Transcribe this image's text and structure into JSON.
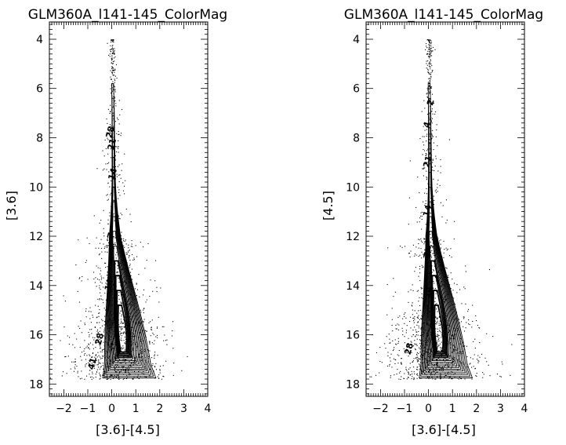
{
  "chart_data": [
    {
      "type": "scatter",
      "title": "GLM360A_l141-145_ColorMag",
      "xlabel": "[3.6]-[4.5]",
      "ylabel": "[3.6]",
      "xlim": [
        -2.6,
        4.0
      ],
      "ylim": [
        18.5,
        3.3
      ],
      "y_inverted": true,
      "xticks": [
        "-2",
        "-1",
        "0",
        "1",
        "2",
        "3",
        "4"
      ],
      "yticks": [
        "4",
        "6",
        "8",
        "10",
        "12",
        "14",
        "16",
        "18"
      ],
      "grid": false,
      "overlay": "density contours",
      "contour_labels": [
        "28",
        "21",
        "14",
        "7",
        "14",
        "28",
        "41"
      ],
      "spine_x": [
        0.03,
        0.05,
        0.06,
        0.07,
        0.09,
        0.1,
        0.11,
        0.1,
        0.09
      ],
      "spine_y": [
        5.8,
        7.0,
        8.5,
        10.0,
        11.5,
        13.0,
        14.5,
        16.0,
        17.0
      ]
    },
    {
      "type": "scatter",
      "title": "GLM360A_l141-145_ColorMag",
      "xlabel": "[3.6]-[4.5]",
      "ylabel": "[4.5]",
      "xlim": [
        -2.6,
        4.0
      ],
      "ylim": [
        18.5,
        3.3
      ],
      "y_inverted": true,
      "xticks": [
        "-2",
        "-1",
        "0",
        "1",
        "2",
        "3",
        "4"
      ],
      "yticks": [
        "4",
        "6",
        "8",
        "10",
        "12",
        "14",
        "16",
        "18"
      ],
      "grid": false,
      "overlay": "density contours",
      "contour_labels": [
        "2",
        "4",
        "21",
        "14",
        "7",
        "14",
        "28"
      ],
      "spine_x": [
        0.02,
        0.04,
        0.05,
        0.06,
        0.08,
        0.09,
        0.1,
        0.09,
        0.08
      ],
      "spine_y": [
        5.8,
        7.0,
        8.5,
        10.0,
        11.5,
        13.0,
        14.5,
        16.0,
        17.0
      ]
    }
  ]
}
